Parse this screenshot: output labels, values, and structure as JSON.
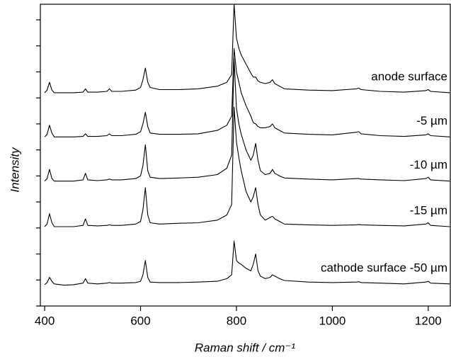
{
  "chart_data": {
    "type": "line",
    "x_label": "Raman shift / cm⁻¹",
    "y_label": "Intensity",
    "xlim": [
      391,
      1246
    ],
    "ylim": [
      0,
      11.6
    ],
    "xticks": [
      400,
      600,
      800,
      1000,
      1200
    ],
    "yticks": [
      0,
      1,
      2,
      3,
      4,
      5,
      6,
      7,
      8,
      9,
      10,
      11
    ],
    "x": [
      400,
      405,
      410,
      415,
      420,
      440,
      460,
      480,
      485,
      490,
      510,
      530,
      535,
      540,
      560,
      590,
      600,
      605,
      610,
      615,
      620,
      640,
      680,
      720,
      760,
      780,
      790,
      795,
      800,
      805,
      810,
      820,
      830,
      835,
      840,
      845,
      850,
      860,
      870,
      875,
      880,
      890,
      900,
      950,
      1000,
      1050,
      1055,
      1060,
      1100,
      1150,
      1195,
      1200,
      1205,
      1245
    ],
    "series": [
      {
        "name": "anode surface",
        "color": "#000000",
        "values": [
          8.2,
          8.3,
          8.6,
          8.3,
          8.2,
          8.2,
          8.2,
          8.22,
          8.35,
          8.22,
          8.22,
          8.25,
          8.35,
          8.25,
          8.25,
          8.3,
          8.4,
          8.7,
          9.15,
          8.6,
          8.4,
          8.32,
          8.32,
          8.35,
          8.45,
          8.6,
          8.9,
          11.6,
          10.3,
          9.9,
          9.65,
          9.3,
          8.95,
          8.8,
          8.8,
          8.65,
          8.6,
          8.55,
          8.6,
          8.7,
          8.55,
          8.45,
          8.35,
          8.3,
          8.28,
          8.35,
          8.38,
          8.32,
          8.25,
          8.22,
          8.28,
          8.32,
          8.25,
          8.2
        ]
      },
      {
        "name": "-5 µm",
        "color": "#000000",
        "values": [
          6.5,
          6.6,
          6.95,
          6.65,
          6.5,
          6.5,
          6.5,
          6.52,
          6.62,
          6.52,
          6.52,
          6.55,
          6.62,
          6.55,
          6.55,
          6.6,
          6.7,
          7.0,
          7.45,
          6.9,
          6.65,
          6.6,
          6.6,
          6.62,
          6.75,
          6.95,
          7.3,
          9.9,
          9.0,
          8.6,
          8.2,
          7.7,
          7.3,
          7.05,
          7.0,
          6.9,
          6.85,
          6.85,
          6.9,
          7.0,
          6.85,
          6.75,
          6.65,
          6.6,
          6.58,
          6.68,
          6.7,
          6.62,
          6.55,
          6.52,
          6.58,
          6.62,
          6.55,
          6.5
        ]
      },
      {
        "name": "-10 µm",
        "color": "#000000",
        "values": [
          4.8,
          4.9,
          5.25,
          4.9,
          4.8,
          4.8,
          4.8,
          4.85,
          5.1,
          4.85,
          4.82,
          4.85,
          4.88,
          4.85,
          4.85,
          4.9,
          5.0,
          5.4,
          6.2,
          5.2,
          4.95,
          4.9,
          4.92,
          4.95,
          5.05,
          5.3,
          5.8,
          9.5,
          7.6,
          7.0,
          6.6,
          6.0,
          5.6,
          5.8,
          6.25,
          5.6,
          5.2,
          5.05,
          5.1,
          5.25,
          5.1,
          5.0,
          4.92,
          4.88,
          4.85,
          4.9,
          4.9,
          4.88,
          4.85,
          4.82,
          4.9,
          4.95,
          4.85,
          4.8
        ]
      },
      {
        "name": "-15 µm",
        "color": "#000000",
        "values": [
          3.05,
          3.15,
          3.55,
          3.2,
          3.05,
          3.05,
          3.05,
          3.1,
          3.35,
          3.1,
          3.08,
          3.1,
          3.12,
          3.1,
          3.1,
          3.15,
          3.25,
          3.7,
          4.55,
          3.5,
          3.2,
          3.15,
          3.18,
          3.2,
          3.3,
          3.5,
          3.9,
          7.65,
          6.3,
          5.7,
          5.2,
          4.4,
          4.0,
          4.2,
          4.55,
          3.9,
          3.5,
          3.3,
          3.4,
          3.45,
          3.35,
          3.25,
          3.15,
          3.12,
          3.1,
          3.12,
          3.13,
          3.12,
          3.1,
          3.08,
          3.15,
          3.2,
          3.1,
          3.05
        ]
      },
      {
        "name": "cathode surface -50 µm",
        "color": "#000000",
        "values": [
          0.82,
          0.9,
          1.1,
          0.95,
          0.85,
          0.8,
          0.82,
          0.88,
          1.05,
          0.88,
          0.85,
          0.88,
          0.9,
          0.88,
          0.88,
          0.9,
          0.95,
          1.2,
          1.75,
          1.1,
          0.92,
          0.9,
          0.9,
          0.92,
          0.95,
          1.05,
          1.2,
          2.5,
          1.75,
          1.65,
          1.6,
          1.45,
          1.35,
          1.6,
          2.0,
          1.35,
          1.15,
          1.05,
          1.1,
          1.2,
          1.15,
          1.05,
          0.98,
          0.92,
          0.9,
          0.92,
          0.93,
          0.9,
          0.88,
          0.85,
          0.92,
          0.95,
          0.88,
          0.85
        ]
      }
    ]
  }
}
